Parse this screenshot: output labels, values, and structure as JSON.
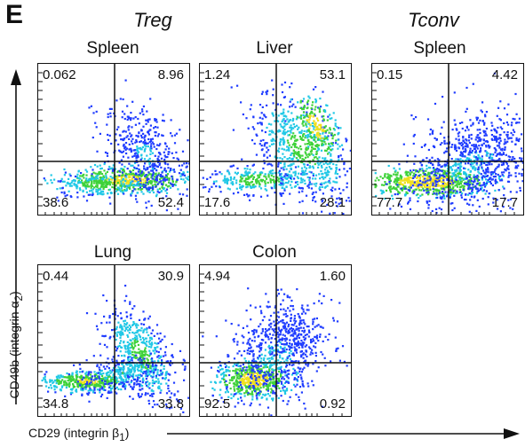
{
  "panel_letter": "E",
  "groups": {
    "treg": "Treg",
    "tconv": "Tconv"
  },
  "axes": {
    "y_label_main": "CD49b (integrin α",
    "y_label_sub": "2",
    "y_label_end": ")",
    "x_label_main": "CD29 (integrin β",
    "x_label_sub": "1",
    "x_label_end": ")"
  },
  "plots": [
    {
      "title": "Spleen",
      "group": "Treg",
      "q": {
        "tl": "0.062",
        "tr": "8.96",
        "bl": "38.6",
        "br": "52.4"
      }
    },
    {
      "title": "Liver",
      "group": "Treg",
      "q": {
        "tl": "1.24",
        "tr": "53.1",
        "bl": "17.6",
        "br": "28.1"
      }
    },
    {
      "title": "Spleen",
      "group": "Tconv",
      "q": {
        "tl": "0.15",
        "tr": "4.42",
        "bl": "77.7",
        "br": "17.7"
      }
    },
    {
      "title": "Lung",
      "group": "Treg",
      "q": {
        "tl": "0.44",
        "tr": "30.9",
        "bl": "34.8",
        "br": "33.8"
      }
    },
    {
      "title": "Colon",
      "group": "Treg",
      "q": {
        "tl": "4.94",
        "tr": "1.60",
        "bl": "92.5",
        "br": "0.92"
      }
    }
  ],
  "colors": {
    "axis": "#111111",
    "density_low": "#1f3cff",
    "density_mid": "#21c8e6",
    "density_high1": "#3fd23a",
    "density_high2": "#f0e020",
    "density_peak": "#e8301c"
  }
}
